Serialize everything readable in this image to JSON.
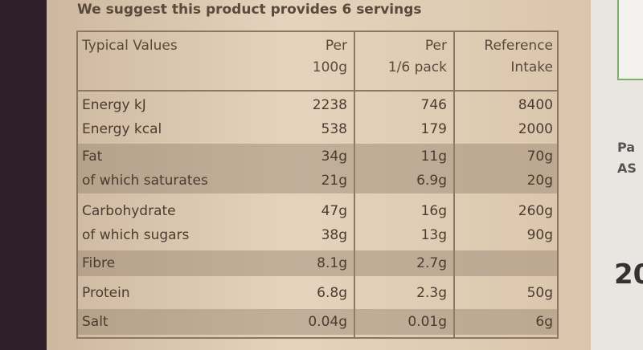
{
  "header": {
    "title": "We suggest this product provides 6 servings"
  },
  "table": {
    "columns": [
      [
        "Typical Values"
      ],
      [
        "Per",
        "100g"
      ],
      [
        "Per",
        "1/6 pack"
      ],
      [
        "Reference",
        "Intake"
      ]
    ],
    "groups": [
      {
        "shaded": false,
        "rows": [
          [
            "Energy kJ",
            "2238",
            "746",
            "8400"
          ],
          [
            "Energy kcal",
            "538",
            "179",
            "2000"
          ]
        ]
      },
      {
        "shaded": true,
        "rows": [
          [
            "Fat",
            "34g",
            "11g",
            "70g"
          ],
          [
            "of which saturates",
            "21g",
            "6.9g",
            "20g"
          ]
        ]
      },
      {
        "shaded": false,
        "rows": [
          [
            "Carbohydrate",
            "47g",
            "16g",
            "260g"
          ],
          [
            "of which sugars",
            "38g",
            "13g",
            "90g"
          ]
        ]
      },
      {
        "shaded": true,
        "rows": [
          [
            "Fibre",
            "8.1g",
            "2.7g",
            null
          ]
        ]
      },
      {
        "shaded": false,
        "rows": [
          [
            "Protein",
            "6.8g",
            "2.3g",
            "50g"
          ]
        ]
      },
      {
        "shaded": true,
        "rows": [
          [
            "Salt",
            "0.04g",
            "0.01g",
            "6g"
          ]
        ]
      }
    ]
  },
  "side": {
    "fragments": [
      "Pa",
      "AS",
      "20"
    ]
  }
}
